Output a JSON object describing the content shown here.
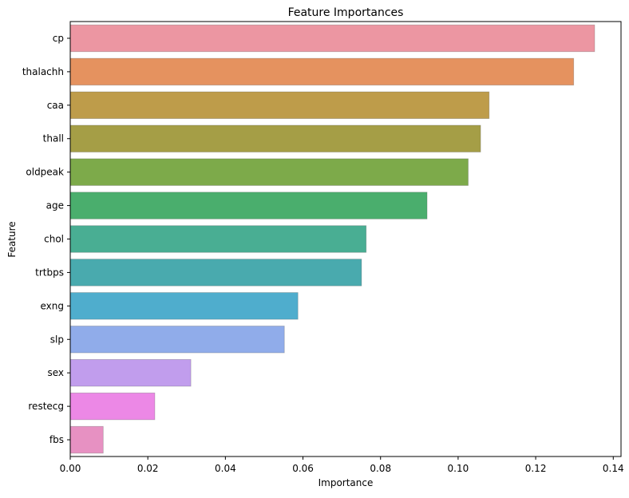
{
  "chart_data": {
    "type": "bar",
    "orientation": "horizontal",
    "title": "Feature Importances",
    "xlabel": "Importance",
    "ylabel": "Feature",
    "categories": [
      "cp",
      "thalachh",
      "caa",
      "thall",
      "oldpeak",
      "age",
      "chol",
      "trtbps",
      "exng",
      "slp",
      "sex",
      "restecg",
      "fbs"
    ],
    "values": [
      0.1352,
      0.1298,
      0.108,
      0.1058,
      0.1026,
      0.092,
      0.0763,
      0.0751,
      0.0587,
      0.0552,
      0.0311,
      0.0218,
      0.0085
    ],
    "colors": [
      "#ec96a2",
      "#e5925f",
      "#be9c4a",
      "#a59e46",
      "#7daa4a",
      "#4aae6d",
      "#49ae93",
      "#49aaae",
      "#4fadcd",
      "#90acea",
      "#c19ded",
      "#ec88e6",
      "#e791c2"
    ],
    "xlim": [
      0,
      0.142
    ],
    "xticks": [
      0.0,
      0.02,
      0.04,
      0.06,
      0.08,
      0.1,
      0.12,
      0.14
    ],
    "xtick_labels": [
      "0.00",
      "0.02",
      "0.04",
      "0.06",
      "0.08",
      "0.10",
      "0.12",
      "0.14"
    ],
    "grid": false,
    "legend": "none"
  }
}
